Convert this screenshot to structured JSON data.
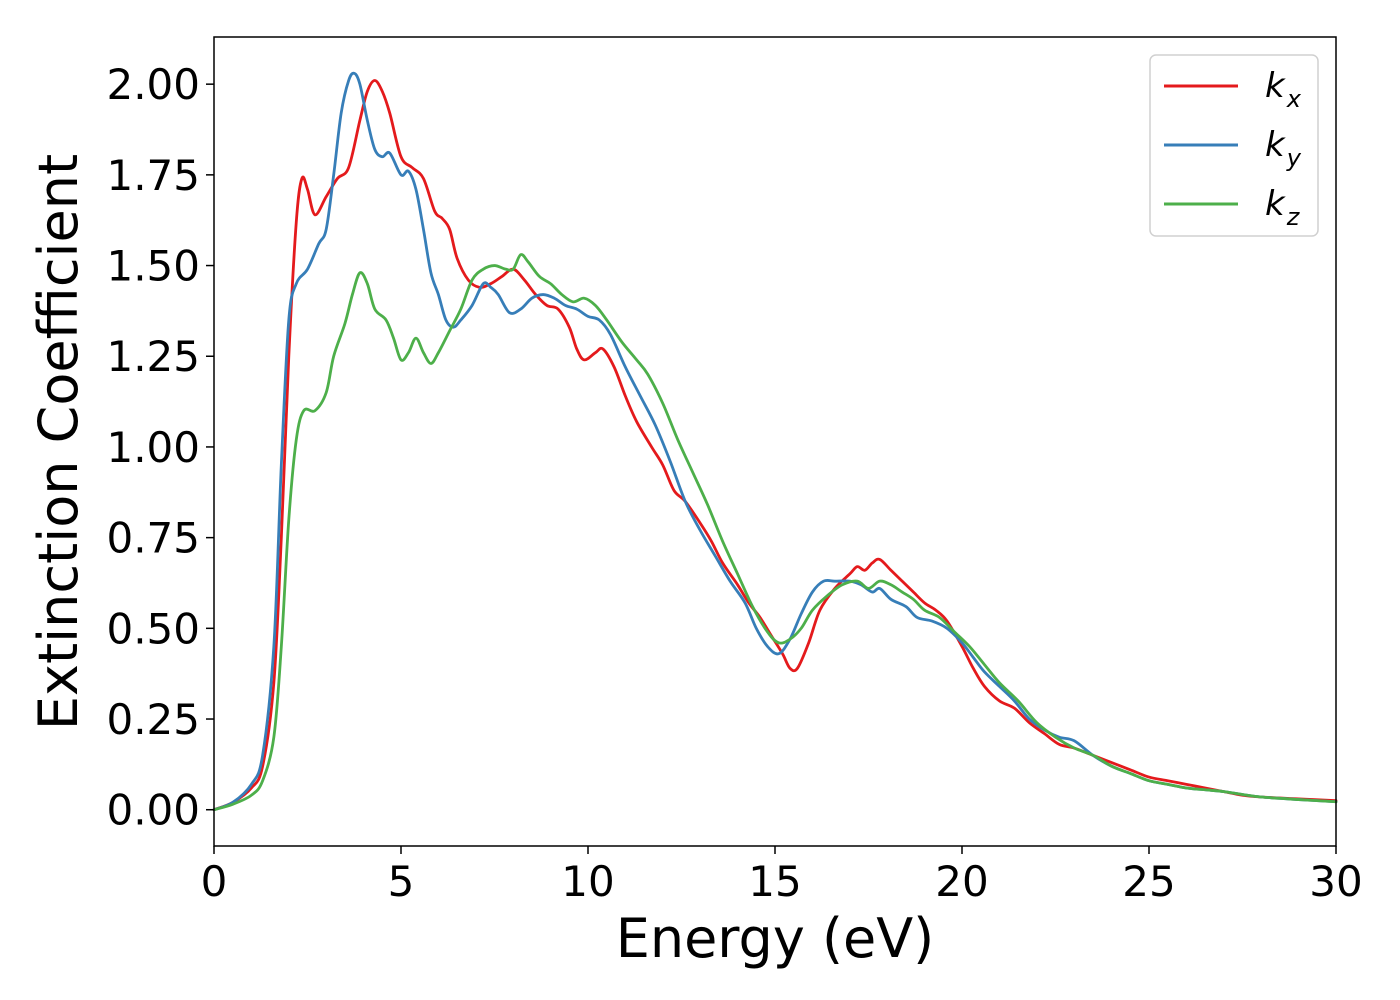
{
  "chart_data": {
    "type": "line",
    "title": "",
    "xlabel": "Energy (eV)",
    "ylabel": "Extinction Coefficient",
    "xlim": [
      0,
      30
    ],
    "ylim": [
      -0.1,
      2.13
    ],
    "xticks": [
      0,
      5,
      10,
      15,
      20,
      25,
      30
    ],
    "xtick_labels": [
      "0",
      "5",
      "10",
      "15",
      "20",
      "25",
      "30"
    ],
    "yticks": [
      0.0,
      0.25,
      0.5,
      0.75,
      1.0,
      1.25,
      1.5,
      1.75,
      2.0
    ],
    "ytick_labels": [
      "0.00",
      "0.25",
      "0.50",
      "0.75",
      "1.00",
      "1.25",
      "1.50",
      "1.75",
      "2.00"
    ],
    "grid": false,
    "legend_position": "top-right",
    "series": [
      {
        "name": "k_x",
        "label_main": "k",
        "label_sub": "x",
        "color": "#e41a1c",
        "points": [
          [
            0,
            0
          ],
          [
            0.5,
            0.02
          ],
          [
            1,
            0.06
          ],
          [
            1.3,
            0.12
          ],
          [
            1.6,
            0.35
          ],
          [
            1.8,
            0.75
          ],
          [
            2.0,
            1.25
          ],
          [
            2.2,
            1.62
          ],
          [
            2.35,
            1.74
          ],
          [
            2.5,
            1.71
          ],
          [
            2.7,
            1.64
          ],
          [
            3.0,
            1.69
          ],
          [
            3.3,
            1.74
          ],
          [
            3.6,
            1.77
          ],
          [
            3.9,
            1.9
          ],
          [
            4.1,
            1.98
          ],
          [
            4.3,
            2.01
          ],
          [
            4.5,
            1.98
          ],
          [
            4.7,
            1.92
          ],
          [
            5.0,
            1.8
          ],
          [
            5.3,
            1.77
          ],
          [
            5.6,
            1.74
          ],
          [
            5.9,
            1.65
          ],
          [
            6.1,
            1.63
          ],
          [
            6.3,
            1.6
          ],
          [
            6.5,
            1.52
          ],
          [
            6.8,
            1.46
          ],
          [
            7.1,
            1.44
          ],
          [
            7.4,
            1.45
          ],
          [
            7.7,
            1.47
          ],
          [
            8.0,
            1.49
          ],
          [
            8.3,
            1.46
          ],
          [
            8.6,
            1.42
          ],
          [
            8.9,
            1.39
          ],
          [
            9.2,
            1.38
          ],
          [
            9.5,
            1.33
          ],
          [
            9.7,
            1.27
          ],
          [
            9.9,
            1.24
          ],
          [
            10.2,
            1.26
          ],
          [
            10.4,
            1.27
          ],
          [
            10.7,
            1.22
          ],
          [
            11.0,
            1.14
          ],
          [
            11.3,
            1.07
          ],
          [
            11.7,
            1.0
          ],
          [
            12.0,
            0.95
          ],
          [
            12.3,
            0.88
          ],
          [
            12.6,
            0.85
          ],
          [
            13.0,
            0.79
          ],
          [
            13.3,
            0.74
          ],
          [
            13.6,
            0.68
          ],
          [
            14.0,
            0.62
          ],
          [
            14.3,
            0.57
          ],
          [
            14.6,
            0.53
          ],
          [
            14.9,
            0.48
          ],
          [
            15.2,
            0.43
          ],
          [
            15.4,
            0.39
          ],
          [
            15.6,
            0.39
          ],
          [
            15.9,
            0.46
          ],
          [
            16.2,
            0.55
          ],
          [
            16.6,
            0.61
          ],
          [
            17.0,
            0.65
          ],
          [
            17.2,
            0.67
          ],
          [
            17.4,
            0.66
          ],
          [
            17.6,
            0.68
          ],
          [
            17.8,
            0.69
          ],
          [
            18.1,
            0.66
          ],
          [
            18.4,
            0.63
          ],
          [
            18.7,
            0.6
          ],
          [
            19.0,
            0.57
          ],
          [
            19.3,
            0.55
          ],
          [
            19.6,
            0.52
          ],
          [
            20.0,
            0.45
          ],
          [
            20.3,
            0.39
          ],
          [
            20.6,
            0.34
          ],
          [
            21.0,
            0.3
          ],
          [
            21.4,
            0.28
          ],
          [
            21.8,
            0.24
          ],
          [
            22.2,
            0.21
          ],
          [
            22.6,
            0.18
          ],
          [
            23.0,
            0.17
          ],
          [
            23.5,
            0.15
          ],
          [
            24.0,
            0.13
          ],
          [
            24.5,
            0.11
          ],
          [
            25.0,
            0.09
          ],
          [
            25.5,
            0.08
          ],
          [
            26.0,
            0.07
          ],
          [
            26.5,
            0.06
          ],
          [
            27.0,
            0.05
          ],
          [
            27.5,
            0.04
          ],
          [
            28.0,
            0.035
          ],
          [
            29.0,
            0.03
          ],
          [
            30.0,
            0.025
          ]
        ]
      },
      {
        "name": "k_y",
        "label_main": "k",
        "label_sub": "y",
        "color": "#377eb8",
        "points": [
          [
            0,
            0
          ],
          [
            0.5,
            0.02
          ],
          [
            1,
            0.07
          ],
          [
            1.3,
            0.15
          ],
          [
            1.6,
            0.45
          ],
          [
            1.8,
            0.95
          ],
          [
            2.0,
            1.35
          ],
          [
            2.2,
            1.45
          ],
          [
            2.5,
            1.49
          ],
          [
            2.8,
            1.56
          ],
          [
            3.0,
            1.6
          ],
          [
            3.2,
            1.75
          ],
          [
            3.4,
            1.92
          ],
          [
            3.6,
            2.01
          ],
          [
            3.75,
            2.03
          ],
          [
            3.9,
            2.0
          ],
          [
            4.1,
            1.9
          ],
          [
            4.3,
            1.82
          ],
          [
            4.5,
            1.8
          ],
          [
            4.7,
            1.81
          ],
          [
            5.0,
            1.75
          ],
          [
            5.2,
            1.76
          ],
          [
            5.4,
            1.71
          ],
          [
            5.6,
            1.6
          ],
          [
            5.8,
            1.48
          ],
          [
            6.0,
            1.42
          ],
          [
            6.2,
            1.35
          ],
          [
            6.4,
            1.33
          ],
          [
            6.6,
            1.35
          ],
          [
            6.9,
            1.39
          ],
          [
            7.2,
            1.45
          ],
          [
            7.4,
            1.44
          ],
          [
            7.6,
            1.42
          ],
          [
            7.9,
            1.37
          ],
          [
            8.2,
            1.38
          ],
          [
            8.5,
            1.41
          ],
          [
            8.8,
            1.42
          ],
          [
            9.1,
            1.41
          ],
          [
            9.4,
            1.39
          ],
          [
            9.7,
            1.38
          ],
          [
            10.0,
            1.36
          ],
          [
            10.3,
            1.35
          ],
          [
            10.6,
            1.31
          ],
          [
            11.0,
            1.22
          ],
          [
            11.4,
            1.14
          ],
          [
            11.8,
            1.06
          ],
          [
            12.2,
            0.96
          ],
          [
            12.6,
            0.85
          ],
          [
            13.0,
            0.77
          ],
          [
            13.4,
            0.7
          ],
          [
            13.8,
            0.63
          ],
          [
            14.2,
            0.57
          ],
          [
            14.5,
            0.5
          ],
          [
            14.8,
            0.45
          ],
          [
            15.1,
            0.43
          ],
          [
            15.4,
            0.47
          ],
          [
            15.7,
            0.54
          ],
          [
            16.0,
            0.6
          ],
          [
            16.3,
            0.63
          ],
          [
            16.6,
            0.63
          ],
          [
            17.0,
            0.63
          ],
          [
            17.3,
            0.62
          ],
          [
            17.6,
            0.6
          ],
          [
            17.8,
            0.61
          ],
          [
            18.1,
            0.58
          ],
          [
            18.5,
            0.56
          ],
          [
            18.8,
            0.53
          ],
          [
            19.2,
            0.52
          ],
          [
            19.6,
            0.5
          ],
          [
            20.0,
            0.46
          ],
          [
            20.3,
            0.42
          ],
          [
            20.6,
            0.38
          ],
          [
            21.0,
            0.34
          ],
          [
            21.4,
            0.3
          ],
          [
            21.8,
            0.25
          ],
          [
            22.2,
            0.22
          ],
          [
            22.6,
            0.2
          ],
          [
            23.0,
            0.19
          ],
          [
            23.5,
            0.15
          ],
          [
            24.0,
            0.12
          ],
          [
            24.5,
            0.1
          ],
          [
            25.0,
            0.08
          ],
          [
            25.5,
            0.07
          ],
          [
            26.0,
            0.06
          ],
          [
            26.5,
            0.055
          ],
          [
            27.0,
            0.05
          ],
          [
            27.5,
            0.042
          ],
          [
            28.0,
            0.035
          ],
          [
            29.0,
            0.028
          ],
          [
            30.0,
            0.022
          ]
        ]
      },
      {
        "name": "k_z",
        "label_main": "k",
        "label_sub": "z",
        "color": "#4daf4a",
        "points": [
          [
            0,
            0
          ],
          [
            0.5,
            0.015
          ],
          [
            1,
            0.04
          ],
          [
            1.3,
            0.08
          ],
          [
            1.6,
            0.2
          ],
          [
            1.8,
            0.45
          ],
          [
            2.0,
            0.8
          ],
          [
            2.2,
            1.02
          ],
          [
            2.4,
            1.1
          ],
          [
            2.7,
            1.1
          ],
          [
            3.0,
            1.15
          ],
          [
            3.2,
            1.25
          ],
          [
            3.5,
            1.34
          ],
          [
            3.7,
            1.42
          ],
          [
            3.9,
            1.48
          ],
          [
            4.1,
            1.45
          ],
          [
            4.3,
            1.38
          ],
          [
            4.6,
            1.35
          ],
          [
            4.8,
            1.3
          ],
          [
            5.0,
            1.24
          ],
          [
            5.2,
            1.26
          ],
          [
            5.4,
            1.3
          ],
          [
            5.6,
            1.26
          ],
          [
            5.8,
            1.23
          ],
          [
            6.0,
            1.26
          ],
          [
            6.3,
            1.32
          ],
          [
            6.6,
            1.38
          ],
          [
            6.9,
            1.46
          ],
          [
            7.2,
            1.49
          ],
          [
            7.5,
            1.5
          ],
          [
            7.8,
            1.49
          ],
          [
            8.0,
            1.49
          ],
          [
            8.2,
            1.53
          ],
          [
            8.4,
            1.51
          ],
          [
            8.7,
            1.47
          ],
          [
            9.0,
            1.45
          ],
          [
            9.3,
            1.42
          ],
          [
            9.6,
            1.4
          ],
          [
            9.9,
            1.41
          ],
          [
            10.2,
            1.39
          ],
          [
            10.5,
            1.35
          ],
          [
            10.9,
            1.29
          ],
          [
            11.3,
            1.24
          ],
          [
            11.6,
            1.2
          ],
          [
            12.0,
            1.12
          ],
          [
            12.4,
            1.02
          ],
          [
            12.8,
            0.93
          ],
          [
            13.2,
            0.84
          ],
          [
            13.6,
            0.74
          ],
          [
            14.0,
            0.65
          ],
          [
            14.4,
            0.56
          ],
          [
            14.8,
            0.49
          ],
          [
            15.1,
            0.46
          ],
          [
            15.4,
            0.47
          ],
          [
            15.7,
            0.5
          ],
          [
            16.0,
            0.55
          ],
          [
            16.4,
            0.59
          ],
          [
            16.8,
            0.62
          ],
          [
            17.2,
            0.63
          ],
          [
            17.5,
            0.61
          ],
          [
            17.8,
            0.63
          ],
          [
            18.1,
            0.62
          ],
          [
            18.4,
            0.6
          ],
          [
            18.7,
            0.58
          ],
          [
            19.0,
            0.55
          ],
          [
            19.4,
            0.53
          ],
          [
            19.8,
            0.49
          ],
          [
            20.2,
            0.45
          ],
          [
            20.6,
            0.4
          ],
          [
            21.0,
            0.35
          ],
          [
            21.5,
            0.3
          ],
          [
            22.0,
            0.24
          ],
          [
            22.5,
            0.2
          ],
          [
            23.0,
            0.17
          ],
          [
            23.5,
            0.15
          ],
          [
            24.0,
            0.12
          ],
          [
            24.5,
            0.1
          ],
          [
            25.0,
            0.08
          ],
          [
            25.5,
            0.07
          ],
          [
            26.0,
            0.06
          ],
          [
            26.5,
            0.055
          ],
          [
            27.0,
            0.05
          ],
          [
            27.5,
            0.042
          ],
          [
            28.0,
            0.035
          ],
          [
            29.0,
            0.028
          ],
          [
            30.0,
            0.022
          ]
        ]
      }
    ]
  }
}
